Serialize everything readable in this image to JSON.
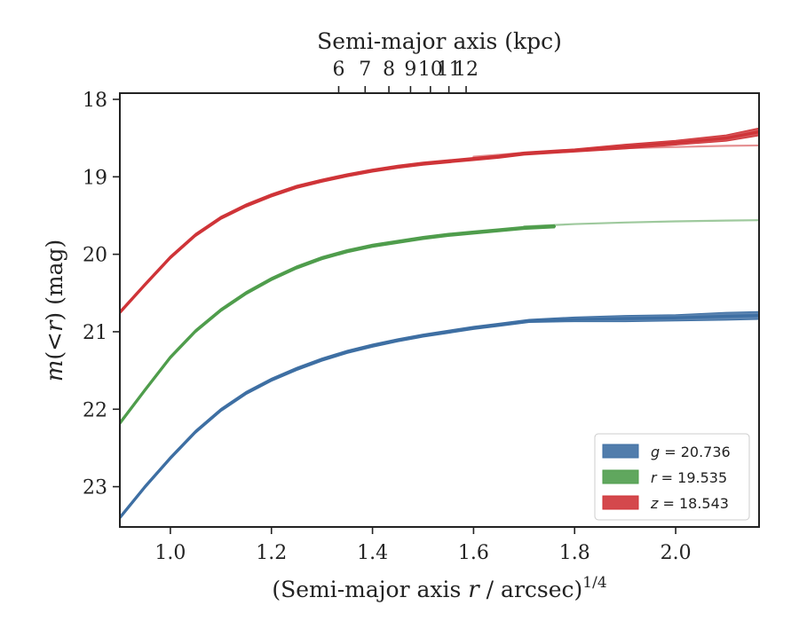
{
  "chart_data": {
    "type": "line",
    "xlabel_bottom": {
      "prefix": "(Semi-major axis ",
      "var": "r",
      "mid": " / arcsec)",
      "sup": "1/4"
    },
    "xlabel_top": "Semi-major axis (kpc)",
    "ylabel": {
      "var1": "m",
      "open": "(",
      "lt": "<",
      "var2": "r",
      "close": ")",
      "unit": " (mag)"
    },
    "xlim": [
      0.9,
      2.165
    ],
    "ylim": [
      23.52,
      17.92
    ],
    "y_inverted": true,
    "xticks": [
      1.0,
      1.2,
      1.4,
      1.6,
      1.8,
      2.0
    ],
    "xtick_labels": [
      "1.0",
      "1.2",
      "1.4",
      "1.6",
      "1.8",
      "2.0"
    ],
    "yticks": [
      18,
      19,
      20,
      21,
      22,
      23
    ],
    "ytick_labels": [
      "18",
      "19",
      "20",
      "21",
      "22",
      "23"
    ],
    "top_ticks_kpc": [
      6,
      7,
      8,
      9,
      10,
      11,
      12
    ],
    "top_tick_labels": [
      "6",
      "7",
      "8",
      "9",
      "10",
      "11",
      "12"
    ],
    "kpc_per_arcsec": 1.9,
    "grid": false,
    "legend_position": "lower-right",
    "series": [
      {
        "name_var": "g",
        "name_value": " = 20.736",
        "color": "#3e6fa3",
        "x": [
          0.9,
          0.95,
          1.0,
          1.05,
          1.1,
          1.15,
          1.2,
          1.25,
          1.3,
          1.35,
          1.4,
          1.45,
          1.5,
          1.55,
          1.6,
          1.65,
          1.71,
          1.8,
          1.9,
          2.0,
          2.1,
          2.165
        ],
        "y": [
          23.4,
          23.0,
          22.63,
          22.29,
          22.01,
          21.79,
          21.62,
          21.48,
          21.36,
          21.26,
          21.18,
          21.11,
          21.05,
          21.0,
          20.95,
          20.91,
          20.86,
          20.84,
          20.83,
          20.82,
          20.8,
          20.79
        ],
        "band": [
          0.02,
          0.02,
          0.02,
          0.02,
          0.02,
          0.02,
          0.02,
          0.02,
          0.02,
          0.02,
          0.02,
          0.02,
          0.02,
          0.02,
          0.02,
          0.02,
          0.02,
          0.03,
          0.04,
          0.04,
          0.05,
          0.05
        ],
        "model_y": []
      },
      {
        "name_var": "r",
        "name_value": " = 19.535",
        "color": "#4f9d4c",
        "x": [
          0.9,
          0.95,
          1.0,
          1.05,
          1.1,
          1.15,
          1.2,
          1.25,
          1.3,
          1.35,
          1.4,
          1.45,
          1.5,
          1.55,
          1.6,
          1.65,
          1.7,
          1.76
        ],
        "y": [
          22.18,
          21.75,
          21.33,
          20.99,
          20.72,
          20.5,
          20.32,
          20.17,
          20.05,
          19.96,
          19.89,
          19.84,
          19.79,
          19.75,
          19.72,
          19.69,
          19.66,
          19.64
        ],
        "band": [
          0.02,
          0.02,
          0.02,
          0.02,
          0.02,
          0.02,
          0.02,
          0.02,
          0.02,
          0.02,
          0.02,
          0.02,
          0.02,
          0.02,
          0.02,
          0.02,
          0.02,
          0.02
        ],
        "model_x": [
          1.7,
          1.8,
          1.9,
          2.0,
          2.1,
          2.165
        ],
        "model_y": [
          19.64,
          19.61,
          19.59,
          19.575,
          19.565,
          19.56
        ]
      },
      {
        "name_var": "z",
        "name_value": " = 18.543",
        "color": "#cf3438",
        "x": [
          0.9,
          0.95,
          1.0,
          1.05,
          1.1,
          1.15,
          1.2,
          1.25,
          1.3,
          1.35,
          1.4,
          1.45,
          1.5,
          1.55,
          1.6,
          1.65,
          1.7,
          1.8,
          1.9,
          2.0,
          2.1,
          2.165
        ],
        "y": [
          20.75,
          20.39,
          20.04,
          19.75,
          19.53,
          19.37,
          19.24,
          19.13,
          19.05,
          18.98,
          18.92,
          18.87,
          18.83,
          18.8,
          18.77,
          18.74,
          18.7,
          18.66,
          18.61,
          18.56,
          18.5,
          18.42
        ],
        "band": [
          0.02,
          0.02,
          0.02,
          0.02,
          0.02,
          0.02,
          0.02,
          0.02,
          0.02,
          0.02,
          0.02,
          0.02,
          0.02,
          0.02,
          0.02,
          0.02,
          0.02,
          0.02,
          0.03,
          0.03,
          0.04,
          0.05
        ],
        "model_x": [
          1.6,
          1.7,
          1.8,
          1.9,
          2.0,
          2.1,
          2.165
        ],
        "model_y": [
          18.74,
          18.69,
          18.65,
          18.63,
          18.615,
          18.6,
          18.595
        ]
      }
    ]
  }
}
